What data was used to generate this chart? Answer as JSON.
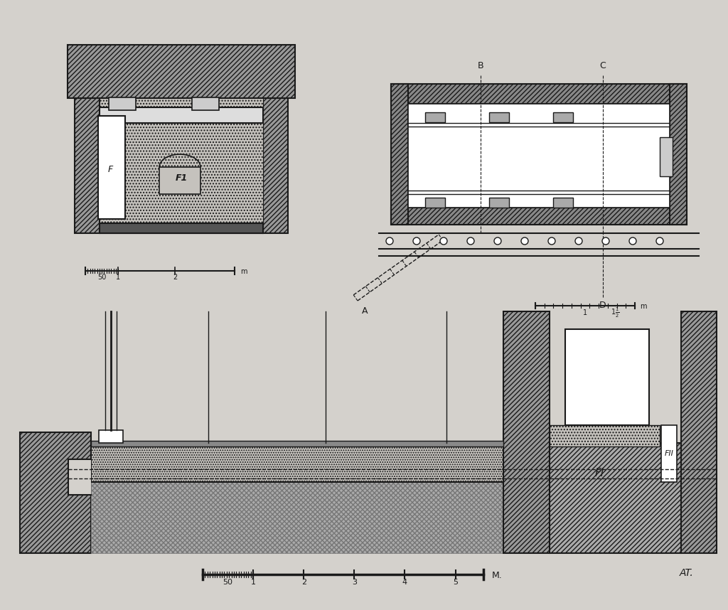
{
  "background_color": "#d4d1cc",
  "line_color": "#1a1a1a",
  "hatch_fc_dark": "#888888",
  "hatch_fc_med": "#aaaaaa",
  "hatch_fc_light": "#c0bdb8",
  "label_B": "B",
  "label_C": "C",
  "label_D": "D",
  "label_A": "A",
  "label_F": "F",
  "label_F1": "F1",
  "label_FI": "FI",
  "label_FII": "FII",
  "label_AT": "AT."
}
